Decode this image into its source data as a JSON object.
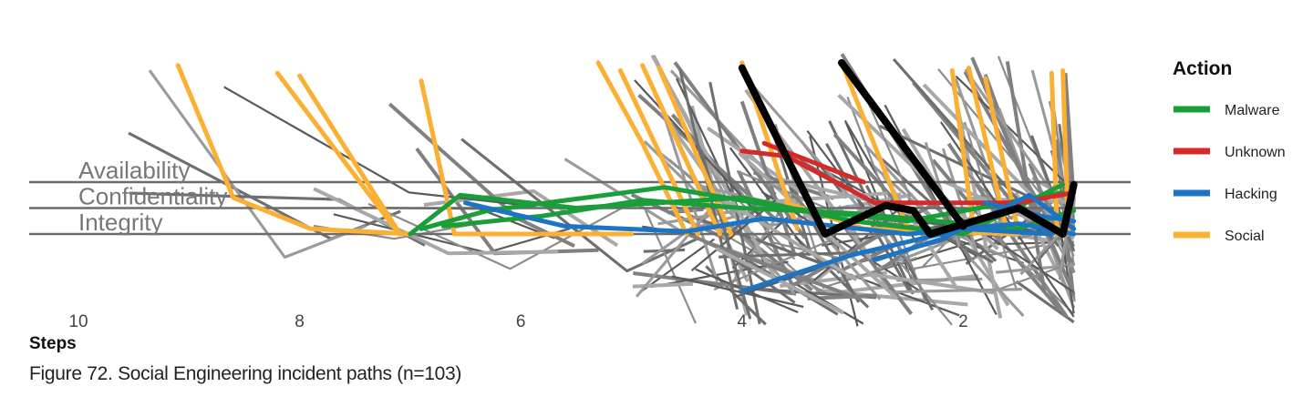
{
  "chart_data": {
    "type": "line",
    "title": "",
    "xlabel": "Steps",
    "ylabel": "",
    "xlim": [
      10.1,
      0
    ],
    "x_reversed": true,
    "x_ticks": [
      10,
      8,
      6,
      4,
      2
    ],
    "attribute_levels": [
      {
        "name": "Availability",
        "level": 3
      },
      {
        "name": "Confidentiality",
        "level": 2
      },
      {
        "name": "Integrity",
        "level": 1
      }
    ],
    "legend": {
      "title": "Action",
      "placement": "right",
      "entries": [
        {
          "name": "Malware",
          "color": "#1a9e3a"
        },
        {
          "name": "Unknown",
          "color": "#d42a2a"
        },
        {
          "name": "Hacking",
          "color": "#1b74c4"
        },
        {
          "name": "Social",
          "color": "#fbb034"
        }
      ]
    },
    "colors": {
      "axis_line": "#6b6b6b",
      "highlight_path": "#000000",
      "background_paths": "#8a8a8a"
    },
    "highlight_path": [
      {
        "step": 4.0,
        "level": 7.4
      },
      {
        "step": 3.25,
        "level": 1.0
      },
      {
        "step": 2.7,
        "level": 2.1
      },
      {
        "step": 2.45,
        "level": 1.9
      },
      {
        "step": 2.3,
        "level": 1.0
      },
      {
        "step": 1.5,
        "level": 2.0
      },
      {
        "step": 1.1,
        "level": 1.0
      },
      {
        "step": 1.0,
        "level": 2.9
      },
      {
        "step": 3.1,
        "level": 7.6
      },
      {
        "step": 2.0,
        "level": 1.3
      }
    ],
    "series": [
      {
        "name": "Social",
        "paths": [
          [
            [
              9.1,
              7.5
            ],
            [
              8.6,
              2.4
            ],
            [
              7.9,
              1.2
            ],
            [
              7.0,
              1.0
            ]
          ],
          [
            [
              8.2,
              7.2
            ],
            [
              7.1,
              1.0
            ]
          ],
          [
            [
              8.0,
              7.1
            ],
            [
              7.1,
              1.05
            ]
          ],
          [
            [
              6.9,
              6.9
            ],
            [
              6.6,
              1.0
            ],
            [
              5.0,
              1.0
            ]
          ],
          [
            [
              5.1,
              7.3
            ],
            [
              4.4,
              1.0
            ]
          ],
          [
            [
              4.9,
              7.5
            ],
            [
              4.2,
              1.0
            ]
          ],
          [
            [
              4.75,
              7.4
            ],
            [
              4.1,
              1.0
            ]
          ],
          [
            [
              4.0,
              7.6
            ],
            [
              3.5,
              1.2
            ]
          ],
          [
            [
              3.1,
              7.6
            ],
            [
              2.5,
              1.2
            ]
          ],
          [
            [
              2.1,
              7.3
            ],
            [
              1.9,
              1.0
            ]
          ],
          [
            [
              1.95,
              7.4
            ],
            [
              1.6,
              1.0
            ]
          ],
          [
            [
              1.8,
              7.0
            ],
            [
              1.5,
              1.05
            ]
          ],
          [
            [
              1.2,
              7.2
            ],
            [
              1.15,
              1.0
            ]
          ],
          [
            [
              1.1,
              7.3
            ],
            [
              1.05,
              1.0
            ]
          ],
          [
            [
              5.3,
              7.6
            ],
            [
              4.9,
              4.5
            ],
            [
              4.5,
              1.0
            ]
          ],
          [
            [
              3.6,
              2.2
            ],
            [
              2.9,
              1.2
            ],
            [
              1.5,
              1.0
            ]
          ]
        ]
      },
      {
        "name": "Malware",
        "paths": [
          [
            [
              7.0,
              1.0
            ],
            [
              6.55,
              2.5
            ],
            [
              5.5,
              2.0
            ],
            [
              4.0,
              2.4
            ],
            [
              3.0,
              1.5
            ],
            [
              2.0,
              1.0
            ],
            [
              1.1,
              2.9
            ]
          ],
          [
            [
              6.9,
              1.2
            ],
            [
              6.3,
              1.9
            ],
            [
              4.7,
              2.8
            ],
            [
              3.6,
              2.0
            ],
            [
              2.5,
              1.5
            ],
            [
              1.1,
              2.6
            ]
          ],
          [
            [
              6.7,
              1.3
            ],
            [
              5.8,
              1.7
            ],
            [
              4.9,
              2.3
            ],
            [
              4.0,
              2.0
            ],
            [
              3.0,
              1.8
            ],
            [
              1.5,
              1.2
            ],
            [
              1.0,
              1.9
            ]
          ]
        ]
      },
      {
        "name": "Unknown",
        "paths": [
          [
            [
              4.0,
              4.2
            ],
            [
              3.6,
              4.0
            ],
            [
              2.8,
              2.2
            ],
            [
              1.5,
              2.2
            ],
            [
              1.0,
              2.6
            ]
          ],
          [
            [
              3.8,
              4.5
            ],
            [
              2.9,
              3.0
            ]
          ]
        ]
      },
      {
        "name": "Hacking",
        "paths": [
          [
            [
              6.5,
              2.2
            ],
            [
              5.6,
              1.3
            ],
            [
              4.5,
              1.1
            ],
            [
              3.8,
              1.6
            ],
            [
              2.5,
              1.0
            ],
            [
              1.5,
              1.4
            ],
            [
              1.0,
              1.0
            ]
          ],
          [
            [
              4.0,
              -1.2
            ],
            [
              3.5,
              -0.5
            ],
            [
              3.0,
              0.2
            ],
            [
              2.0,
              1.2
            ],
            [
              1.2,
              1.0
            ]
          ],
          [
            [
              2.8,
              0.0
            ],
            [
              2.2,
              0.8
            ],
            [
              1.4,
              2.5
            ],
            [
              1.0,
              1.2
            ]
          ],
          [
            [
              1.8,
              2.2
            ],
            [
              1.3,
              1.7
            ],
            [
              1.0,
              1.5
            ]
          ]
        ]
      }
    ]
  },
  "caption": "Figure 72. Social Engineering incident paths (n=103)"
}
